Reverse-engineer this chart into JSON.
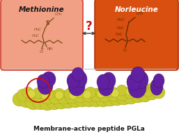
{
  "title": "Membrane-active peptide PGLa",
  "methionine_label": "Methionine",
  "norleucine_label": "Norleucine",
  "methionine_bg": "#F2A085",
  "norleucine_bg": "#D94F10",
  "methionine_border": "#D04030",
  "norleucine_border": "#B03010",
  "background_color": "#FFFFFF",
  "separator_color": "#B0C8D8",
  "question_color": "#CC1010",
  "struct_color_met": "#7a4a10",
  "struct_color_nle": "#5a2800",
  "title_fontsize": 6.5,
  "label_fontsize": 7.5
}
